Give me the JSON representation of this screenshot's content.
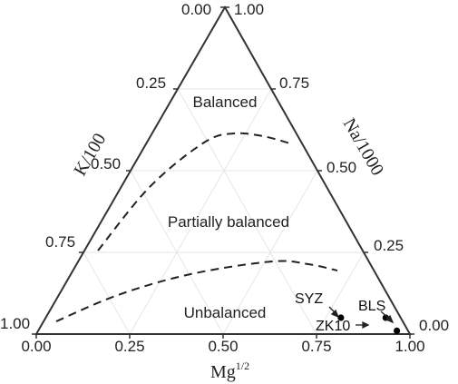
{
  "chart_data": {
    "type": "ternary",
    "axes": {
      "bottom": {
        "label": "Mg",
        "exponent": "1/2"
      },
      "left": {
        "label": "K/100"
      },
      "right": {
        "label": "Na/1000"
      }
    },
    "ticks": {
      "bottom": [
        "0.00",
        "0.25",
        "0.50",
        "0.75",
        "1.00"
      ],
      "left": [
        "0.00",
        "0.25",
        "0.50",
        "0.75",
        "1.00"
      ],
      "right": [
        "1.00",
        "0.75",
        "0.50",
        "0.25",
        "0.00"
      ]
    },
    "grid": true,
    "regions": [
      {
        "name": "Balanced",
        "label": "Balanced"
      },
      {
        "name": "Partially balanced",
        "label": "Partially balanced"
      },
      {
        "name": "Unbalanced",
        "label": "Unbalanced"
      }
    ],
    "boundaries": [
      {
        "name": "full-equilibrium-line",
        "points": [
          [
            0.9,
            0.33
          ],
          [
            0.85,
            0.29
          ],
          [
            0.81,
            0.35
          ],
          [
            0.87,
            0.27
          ],
          [
            0.99,
            0.1
          ]
        ]
      },
      {
        "name": "partial-equilibrium-line",
        "points": [
          [
            0.95,
            0.02
          ],
          [
            0.86,
            0.08
          ],
          [
            0.72,
            0.12
          ],
          [
            0.6,
            0.13
          ],
          [
            0.4,
            0.21
          ]
        ]
      }
    ],
    "series": [
      {
        "points": [
          {
            "label": "SYZ",
            "K": 0.05,
            "Na": 0.16,
            "Mg": 0.79
          },
          {
            "label": "ZK10",
            "K": 0.05,
            "Na": 0.04,
            "Mg": 0.91
          },
          {
            "label": "BLS",
            "K": 0.01,
            "Na": 0.03,
            "Mg": 0.96
          }
        ]
      }
    ]
  }
}
